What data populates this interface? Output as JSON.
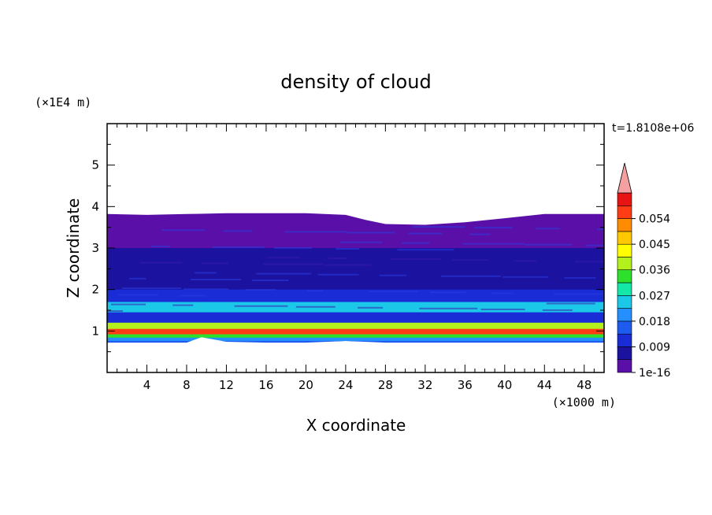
{
  "chart_data": {
    "type": "heatmap",
    "title": "density of cloud",
    "xlabel": "X coordinate",
    "ylabel": "Z coordinate",
    "x_unit": "(×1000 m)",
    "y_unit": "(×1E4 m)",
    "time_label": "t=1.8108e+06",
    "xlim": [
      0,
      50
    ],
    "ylim": [
      0,
      6
    ],
    "x_major_ticks": [
      4,
      8,
      12,
      16,
      20,
      24,
      28,
      32,
      36,
      40,
      44,
      48
    ],
    "y_major_ticks": [
      1,
      2,
      3,
      4,
      5
    ],
    "x_tick_labels": [
      "4",
      "8",
      "12",
      "16",
      "20",
      "24",
      "28",
      "32",
      "36",
      "40",
      "44",
      "48"
    ],
    "y_tick_labels": [
      "1",
      "2",
      "3",
      "4",
      "5"
    ],
    "colorbar": {
      "labels": [
        {
          "value": 0.054,
          "text": "0.054"
        },
        {
          "value": 0.045,
          "text": "0.045"
        },
        {
          "value": 0.036,
          "text": "0.036"
        },
        {
          "value": 0.027,
          "text": "0.027"
        },
        {
          "value": 0.018,
          "text": "0.018"
        },
        {
          "value": 0.009,
          "text": "0.009"
        },
        {
          "value": 0,
          "text": "1e-16"
        }
      ],
      "levels": [
        0,
        0.0045,
        0.009,
        0.0135,
        0.018,
        0.0225,
        0.027,
        0.0315,
        0.036,
        0.0405,
        0.045,
        0.0495,
        0.054,
        0.0585
      ],
      "colors": [
        "#5a10a8",
        "#1c12a0",
        "#1a2cd6",
        "#1e5cf0",
        "#2490ff",
        "#1cc8e8",
        "#14e8a8",
        "#2ce02c",
        "#b4f01c",
        "#ffff00",
        "#ffc800",
        "#ff8c00",
        "#ff3c14",
        "#e81414"
      ],
      "overflow_color": "#f4a0a0"
    },
    "cloud_top_z": [
      [
        0,
        3.82
      ],
      [
        4,
        3.8
      ],
      [
        8,
        3.82
      ],
      [
        12,
        3.84
      ],
      [
        16,
        3.84
      ],
      [
        20,
        3.84
      ],
      [
        24,
        3.8
      ],
      [
        26,
        3.68
      ],
      [
        28,
        3.58
      ],
      [
        32,
        3.56
      ],
      [
        36,
        3.62
      ],
      [
        40,
        3.72
      ],
      [
        44,
        3.82
      ],
      [
        48,
        3.82
      ],
      [
        50,
        3.82
      ]
    ],
    "cloud_base_z": [
      [
        0,
        0.72
      ],
      [
        4,
        0.72
      ],
      [
        8,
        0.72
      ],
      [
        9.5,
        0.85
      ],
      [
        12,
        0.74
      ],
      [
        16,
        0.72
      ],
      [
        20,
        0.72
      ],
      [
        24,
        0.76
      ],
      [
        28,
        0.72
      ],
      [
        32,
        0.72
      ],
      [
        36,
        0.72
      ],
      [
        40,
        0.72
      ],
      [
        44,
        0.72
      ],
      [
        48,
        0.72
      ],
      [
        50,
        0.72
      ]
    ],
    "layers": [
      {
        "z": [
          3.0,
          3.85
        ],
        "value": 0.001
      },
      {
        "z": [
          2.6,
          3.0
        ],
        "value": 0.005
      },
      {
        "z": [
          2.0,
          2.6
        ],
        "value": 0.008
      },
      {
        "z": [
          1.7,
          2.0
        ],
        "value": 0.013
      },
      {
        "z": [
          1.45,
          1.7
        ],
        "value": 0.026
      },
      {
        "z": [
          1.2,
          1.45
        ],
        "value": 0.012
      },
      {
        "z": [
          1.05,
          1.2
        ],
        "value": 0.038
      },
      {
        "z": [
          0.92,
          1.05
        ],
        "value": 0.058
      },
      {
        "z": [
          0.84,
          0.92
        ],
        "value": 0.032
      },
      {
        "z": [
          0.76,
          0.84
        ],
        "value": 0.022
      },
      {
        "z": [
          0.72,
          0.76
        ],
        "value": 0.016
      }
    ]
  }
}
